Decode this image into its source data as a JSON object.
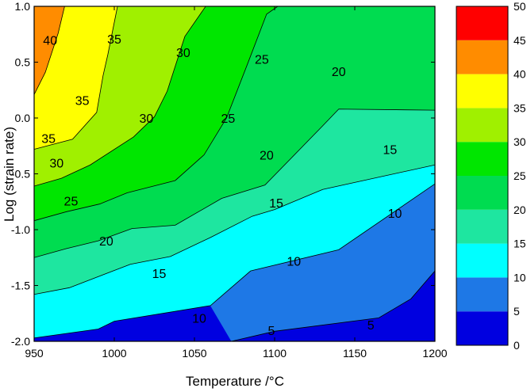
{
  "chart_data": {
    "type": "contour",
    "title": "",
    "xlabel": "Temperature /°C",
    "ylabel": "Log (strain rate)",
    "xlim": [
      950,
      1200
    ],
    "ylim": [
      -2.0,
      1.0
    ],
    "x_ticks": [
      950,
      1000,
      1050,
      1100,
      1150,
      1200
    ],
    "y_ticks": [
      -2.0,
      -1.5,
      -1.0,
      -0.5,
      0.0,
      0.5,
      1.0
    ],
    "x_tick_labels": [
      "950",
      "1000",
      "1050",
      "1100",
      "1150",
      "1200"
    ],
    "y_tick_labels": [
      "-2.0",
      "-1.5",
      "-1.0",
      "-0.5",
      "0.0",
      "0.5",
      "1.0"
    ],
    "grid": false,
    "colorbar": {
      "levels": [
        0,
        5,
        10,
        15,
        20,
        25,
        30,
        35,
        40,
        45,
        50
      ],
      "labels": [
        "0",
        "5",
        "10",
        "15",
        "20",
        "25",
        "30",
        "35",
        "40",
        "45",
        "50"
      ],
      "colors": [
        "#0000e0",
        "#1e78e6",
        "#00ffff",
        "#1ee6a0",
        "#00dc50",
        "#00e600",
        "#a0f000",
        "#ffff00",
        "#ff8c00",
        "#ff0000"
      ]
    },
    "contours": [
      {
        "level": 5,
        "label": "5",
        "points": [
          [
            1073,
            -2.0
          ],
          [
            1100,
            -1.91
          ],
          [
            1165,
            -1.79
          ],
          [
            1185,
            -1.62
          ],
          [
            1200,
            -1.37
          ]
        ]
      },
      {
        "level": 10,
        "label": "10",
        "points": [
          [
            950,
            -1.97
          ],
          [
            990,
            -1.89
          ],
          [
            1000,
            -1.82
          ],
          [
            1060,
            -1.68
          ],
          [
            1085,
            -1.37
          ],
          [
            1140,
            -1.18
          ],
          [
            1200,
            -0.59
          ]
        ]
      },
      {
        "level": 15,
        "label": "15",
        "points": [
          [
            950,
            -1.58
          ],
          [
            972,
            -1.52
          ],
          [
            1010,
            -1.31
          ],
          [
            1035,
            -1.24
          ],
          [
            1060,
            -1.07
          ],
          [
            1086,
            -0.88
          ],
          [
            1100,
            -0.82
          ],
          [
            1130,
            -0.64
          ],
          [
            1200,
            -0.42
          ]
        ]
      },
      {
        "level": 20,
        "label": "20",
        "points": [
          [
            950,
            -1.25
          ],
          [
            970,
            -1.17
          ],
          [
            990,
            -1.1
          ],
          [
            1011,
            -0.99
          ],
          [
            1038,
            -0.96
          ],
          [
            1067,
            -0.72
          ],
          [
            1094,
            -0.6
          ],
          [
            1130,
            -0.07
          ],
          [
            1140,
            0.08
          ],
          [
            1200,
            0.07
          ]
        ]
      },
      {
        "level": 25,
        "label": "25",
        "points": [
          [
            950,
            -0.92
          ],
          [
            970,
            -0.84
          ],
          [
            991,
            -0.77
          ],
          [
            1008,
            -0.67
          ],
          [
            1038,
            -0.56
          ],
          [
            1056,
            -0.33
          ],
          [
            1070,
            0.0
          ],
          [
            1083,
            0.48
          ],
          [
            1095,
            0.93
          ],
          [
            1102,
            1.0
          ]
        ]
      },
      {
        "level": 30,
        "label": "30",
        "points": [
          [
            950,
            -0.61
          ],
          [
            967,
            -0.54
          ],
          [
            985,
            -0.42
          ],
          [
            1012,
            -0.17
          ],
          [
            1025,
            0.01
          ],
          [
            1033,
            0.24
          ],
          [
            1044,
            0.73
          ],
          [
            1057,
            1.0
          ]
        ]
      },
      {
        "level": 35,
        "label": "35",
        "points": [
          [
            950,
            -0.28
          ],
          [
            974,
            -0.19
          ],
          [
            989,
            0.05
          ],
          [
            993,
            0.38
          ],
          [
            996,
            0.57
          ],
          [
            1002,
            1.0
          ]
        ]
      },
      {
        "level": 40,
        "label": "40",
        "points": [
          [
            950,
            0.21
          ],
          [
            957,
            0.41
          ],
          [
            965,
            0.76
          ],
          [
            969,
            1.0
          ]
        ]
      }
    ],
    "contour_labels": [
      {
        "text": "40",
        "x": 960,
        "y": 0.7
      },
      {
        "text": "35",
        "x": 1000,
        "y": 0.71
      },
      {
        "text": "35",
        "x": 980,
        "y": 0.16
      },
      {
        "text": "35",
        "x": 959,
        "y": -0.18
      },
      {
        "text": "30",
        "x": 1043,
        "y": 0.59
      },
      {
        "text": "30",
        "x": 1020,
        "y": 0.0
      },
      {
        "text": "30",
        "x": 964,
        "y": -0.4
      },
      {
        "text": "25",
        "x": 1092,
        "y": 0.53
      },
      {
        "text": "25",
        "x": 1071,
        "y": 0.0
      },
      {
        "text": "25",
        "x": 973,
        "y": -0.74
      },
      {
        "text": "20",
        "x": 1140,
        "y": 0.42
      },
      {
        "text": "20",
        "x": 1095,
        "y": -0.33
      },
      {
        "text": "20",
        "x": 995,
        "y": -1.1
      },
      {
        "text": "15",
        "x": 1172,
        "y": -0.28
      },
      {
        "text": "15",
        "x": 1101,
        "y": -0.76
      },
      {
        "text": "15",
        "x": 1028,
        "y": -1.39
      },
      {
        "text": "10",
        "x": 1175,
        "y": -0.85
      },
      {
        "text": "10",
        "x": 1112,
        "y": -1.28
      },
      {
        "text": "10",
        "x": 1053,
        "y": -1.79
      },
      {
        "text": "5",
        "x": 1098,
        "y": -1.9
      },
      {
        "text": "5",
        "x": 1160,
        "y": -1.85
      }
    ]
  }
}
